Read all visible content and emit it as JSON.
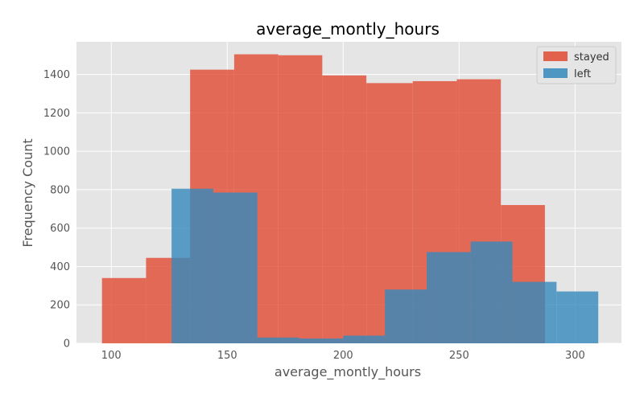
{
  "chart_data": {
    "type": "histogram",
    "title": "average_montly_hours",
    "xlabel": "average_montly_hours",
    "ylabel": "Frequency Count",
    "xlim": [
      85,
      320
    ],
    "ylim": [
      0,
      1570
    ],
    "xticks": [
      100,
      150,
      200,
      250,
      300
    ],
    "yticks": [
      0,
      200,
      400,
      600,
      800,
      1000,
      1200,
      1400
    ],
    "grid": true,
    "legend_position": "top-right",
    "series": [
      {
        "name": "stayed",
        "color": "#E24A33",
        "bins": [
          {
            "x0": 96,
            "x1": 115,
            "count": 340
          },
          {
            "x0": 115,
            "x1": 134,
            "count": 445
          },
          {
            "x0": 134,
            "x1": 153,
            "count": 1425
          },
          {
            "x0": 153,
            "x1": 172,
            "count": 1505
          },
          {
            "x0": 172,
            "x1": 191,
            "count": 1500
          },
          {
            "x0": 191,
            "x1": 210,
            "count": 1395
          },
          {
            "x0": 210,
            "x1": 230,
            "count": 1355
          },
          {
            "x0": 230,
            "x1": 249,
            "count": 1365
          },
          {
            "x0": 249,
            "x1": 268,
            "count": 1375
          },
          {
            "x0": 268,
            "x1": 287,
            "count": 720
          }
        ]
      },
      {
        "name": "left",
        "color": "#348ABD",
        "bins": [
          {
            "x0": 126,
            "x1": 144,
            "count": 805
          },
          {
            "x0": 144,
            "x1": 163,
            "count": 785
          },
          {
            "x0": 163,
            "x1": 181,
            "count": 30
          },
          {
            "x0": 181,
            "x1": 200,
            "count": 25
          },
          {
            "x0": 200,
            "x1": 218,
            "count": 40
          },
          {
            "x0": 218,
            "x1": 236,
            "count": 280
          },
          {
            "x0": 236,
            "x1": 255,
            "count": 475
          },
          {
            "x0": 255,
            "x1": 273,
            "count": 530
          },
          {
            "x0": 273,
            "x1": 292,
            "count": 320
          },
          {
            "x0": 292,
            "x1": 310,
            "count": 270
          }
        ]
      }
    ]
  }
}
